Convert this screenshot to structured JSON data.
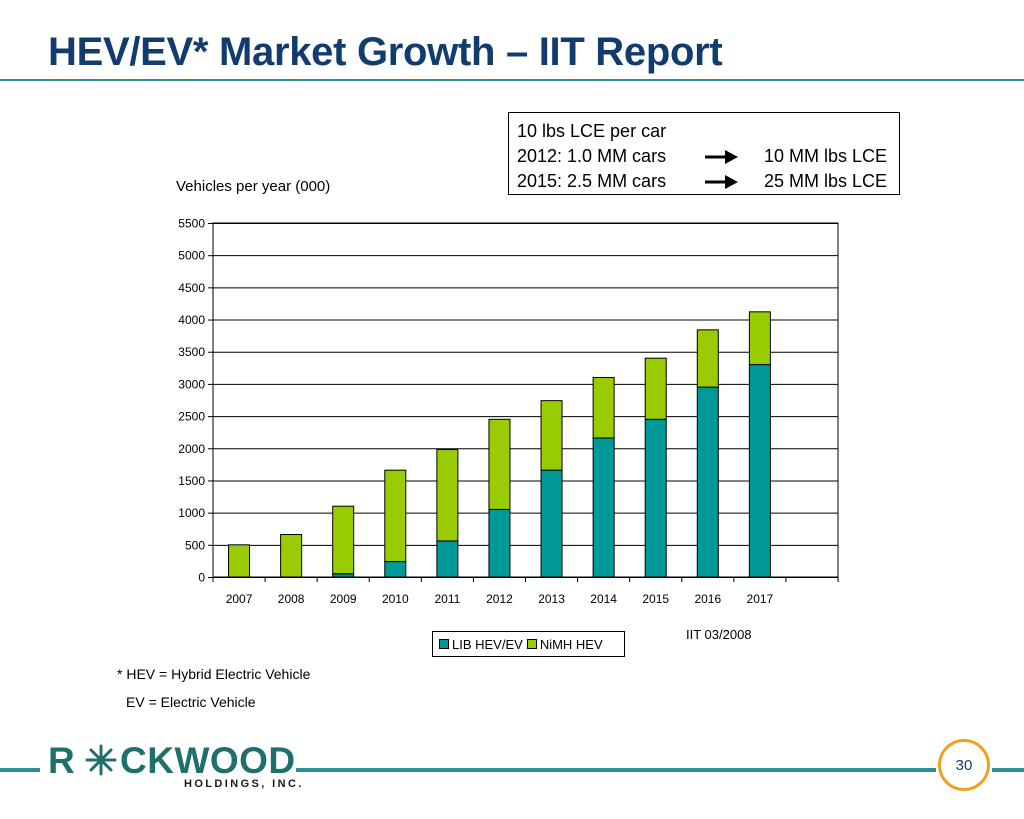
{
  "slide": {
    "title": "HEV/EV* Market Growth – IIT Report",
    "page_number": "30"
  },
  "info_box": {
    "line1": "10 lbs LCE per car",
    "line2_left": "2012: 1.0 MM cars",
    "line2_right": "10 MM lbs LCE",
    "line3_left": "2015: 2.5 MM cars",
    "line3_right": "25 MM lbs LCE",
    "arrow_icon": "right-arrow-icon"
  },
  "footnotes": {
    "hev": "* HEV = Hybrid Electric Vehicle",
    "ev": "EV = Electric Vehicle"
  },
  "source_note": "IIT 03/2008",
  "logo": {
    "word_left": "R",
    "word_right": "CKWOOD",
    "subtitle": "HOLDINGS, INC.",
    "icon": "snowflake-icon"
  },
  "colors": {
    "title": "#123c6e",
    "accent_rule": "#2d8f95",
    "lib_series": "#00999a",
    "nimh_series": "#99cc00",
    "page_circle": "#f0a020",
    "logo": "#1f6f6b"
  },
  "chart_data": {
    "type": "bar",
    "stacked": true,
    "ylabel": "Vehicles per year (000)",
    "categories": [
      "2007",
      "2008",
      "2009",
      "2010",
      "2011",
      "2012",
      "2013",
      "2014",
      "2015",
      "2016",
      "2017"
    ],
    "series": [
      {
        "name": "LIB HEV/EV",
        "color": "#00999a",
        "values": [
          0,
          0,
          50,
          240,
          560,
          1050,
          1660,
          2160,
          2450,
          2950,
          3300
        ]
      },
      {
        "name": "NiMH HEV",
        "color": "#99cc00",
        "values": [
          500,
          660,
          1050,
          1420,
          1420,
          1400,
          1080,
          940,
          950,
          890,
          820
        ]
      }
    ],
    "ylim": [
      0,
      5500
    ],
    "yticks": [
      0,
      500,
      1000,
      1500,
      2000,
      2500,
      3000,
      3500,
      4000,
      4500,
      5000,
      5500
    ],
    "grid": true,
    "legend_position": "bottom-center"
  }
}
